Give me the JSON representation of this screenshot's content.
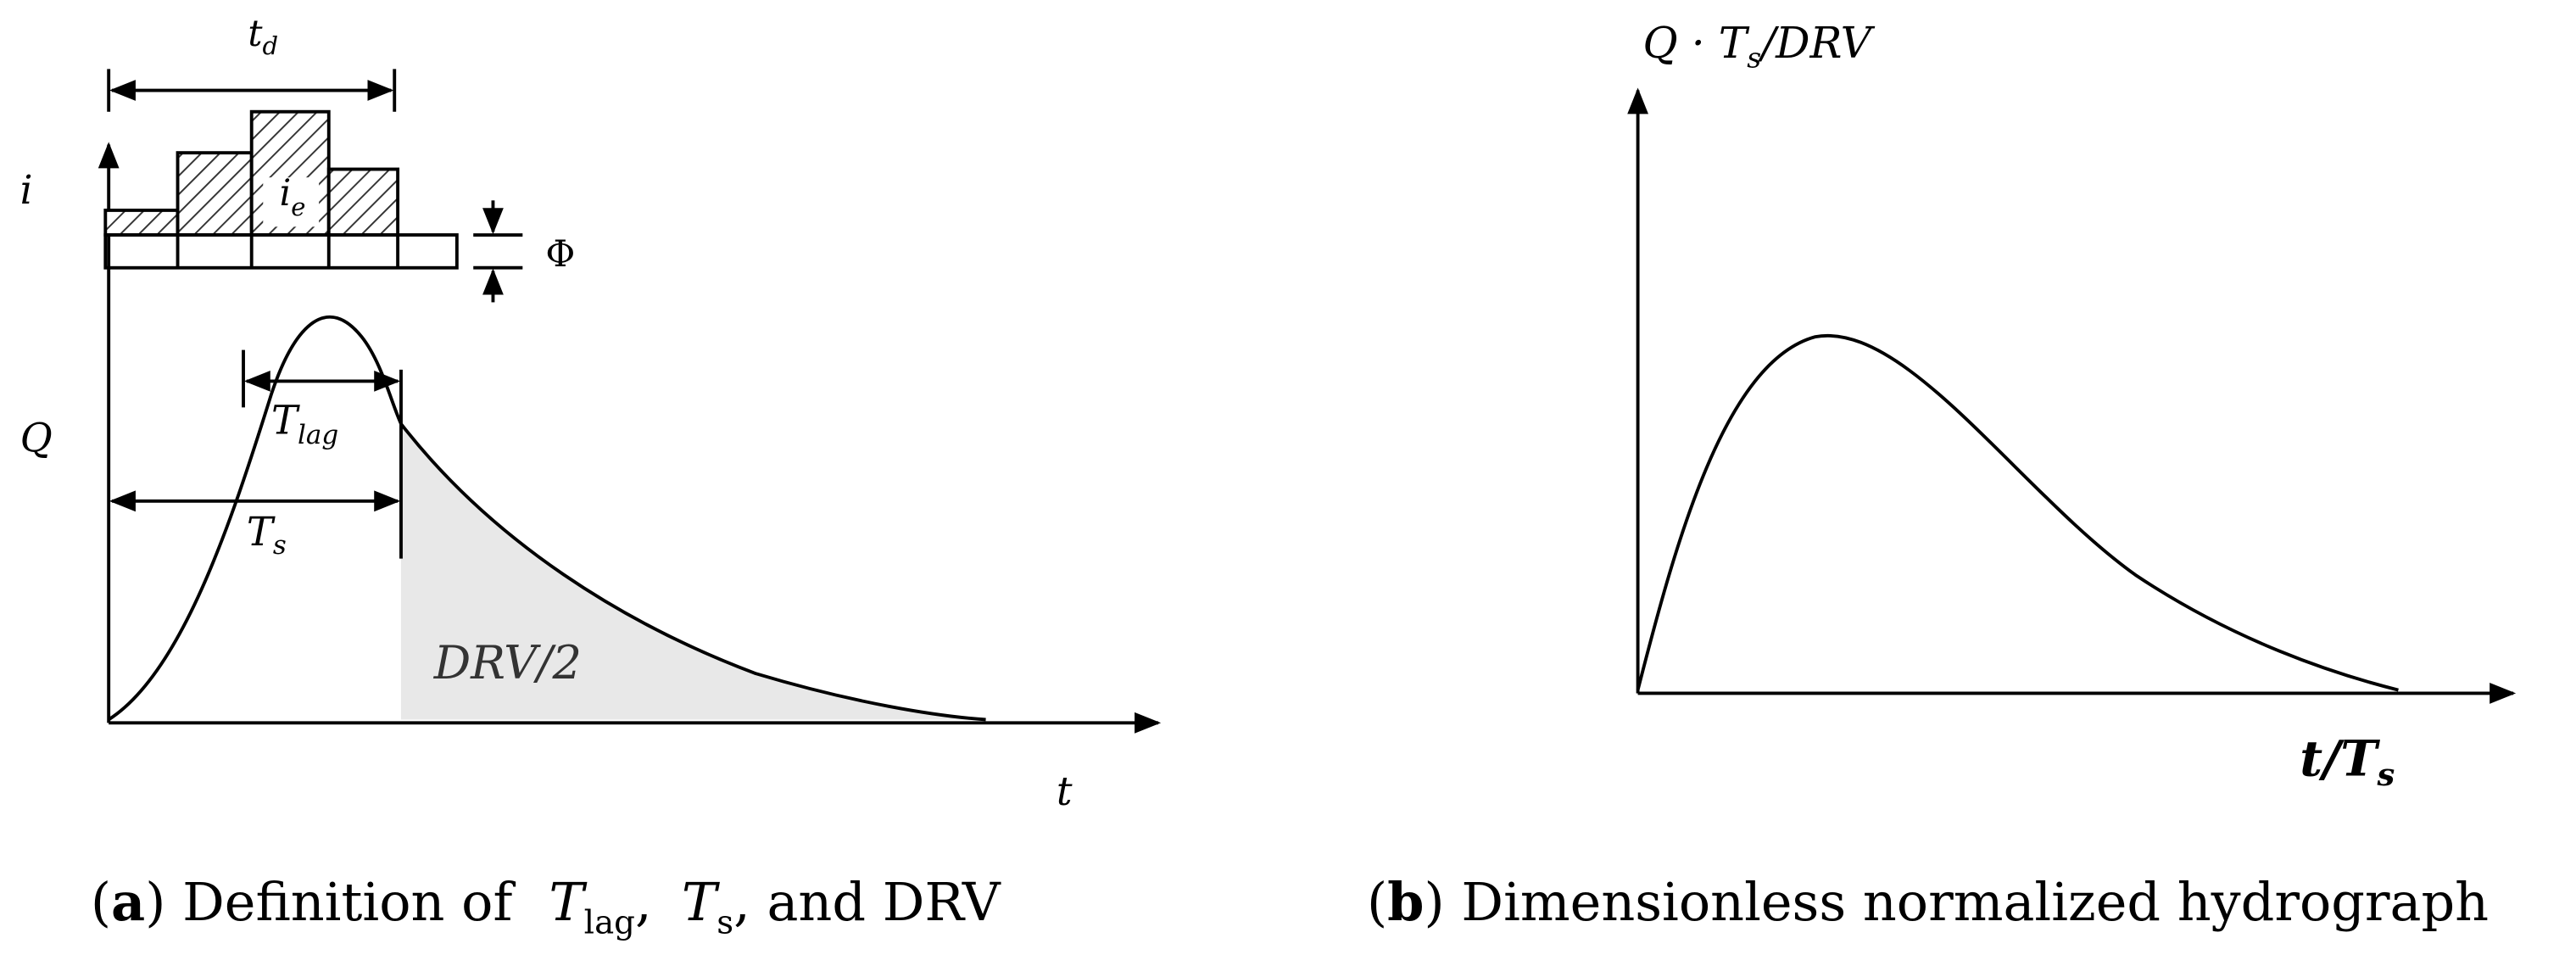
{
  "panel_a": {
    "duration_label": {
      "main": "t",
      "sub": "d"
    },
    "intensity_axis_label": "i",
    "effective_rain_label": {
      "main": "i",
      "sub": "e"
    },
    "loss_label": "Φ",
    "flow_axis_label": "Q",
    "lag_label": {
      "main": "T",
      "sub": "lag"
    },
    "ts_label": {
      "main": "T",
      "sub": "s"
    },
    "area_label": "DRV/2",
    "time_axis_label": "t",
    "caption": [
      "(",
      "a",
      ") Definition of ",
      "T",
      "lag",
      ", ",
      "T",
      "s",
      ", and DRV"
    ]
  },
  "panel_b": {
    "y_axis_label": [
      "Q · T",
      "s",
      "/DRV"
    ],
    "x_axis_label": [
      "t/T",
      "s"
    ],
    "caption": [
      "(",
      "b",
      ") Dimensionless normalized hydrograph"
    ]
  }
}
